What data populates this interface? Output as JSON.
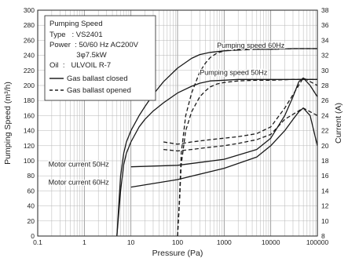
{
  "chart_data": {
    "type": "line",
    "xlabel": "Pressure (Pa)",
    "ylabel_left": "Pumping Speed (m³/h)",
    "ylabel_right": "Current (A)",
    "x_scale": "log",
    "xlim": [
      0.1,
      100000
    ],
    "ylim_left": [
      0,
      300
    ],
    "ylim_right": [
      8,
      38
    ],
    "x_ticks": [
      0.1,
      1,
      10,
      100,
      1000,
      10000,
      100000
    ],
    "x_tick_labels": [
      "0.1",
      "1",
      "10",
      "100",
      "1000",
      "10000",
      "100000"
    ],
    "y_ticks_left": [
      0,
      20,
      40,
      60,
      80,
      100,
      120,
      140,
      160,
      180,
      200,
      220,
      240,
      260,
      280,
      300
    ],
    "y_ticks_right": [
      8,
      10,
      12,
      14,
      16,
      18,
      20,
      22,
      24,
      26,
      28,
      30,
      32,
      34,
      36,
      38
    ],
    "grid": true,
    "legend": {
      "title": "Pumping Speed",
      "lines": [
        "Type   : VS2401",
        "Power  : 50/60 Hz AC200V",
        "             3φ7.5kW",
        "Oil  :   ULVOIL R-7"
      ],
      "entries": [
        {
          "label": "Gas ballast closed",
          "style": "solid"
        },
        {
          "label": "Gas ballast opened",
          "style": "dashed"
        }
      ],
      "position": "top-left"
    },
    "annotations": [
      {
        "text": "Pumping speed 60Hz",
        "x": 700,
        "y": 250
      },
      {
        "text": "Pumping speed 50Hz",
        "x": 300,
        "y": 214
      },
      {
        "text": "Motor current 50Hz",
        "x": 0.17,
        "y": 92
      },
      {
        "text": "Motor current 60Hz",
        "x": 0.17,
        "y": 68
      }
    ],
    "series": [
      {
        "axis": "left",
        "style": "solid",
        "x": [
          5,
          6,
          7,
          8,
          10,
          15,
          20,
          30,
          50,
          100,
          200,
          300,
          500,
          1000,
          2000,
          5000,
          10000,
          30000,
          100000
        ],
        "y": [
          0,
          80,
          110,
          125,
          140,
          160,
          172,
          188,
          205,
          223,
          236,
          241,
          244,
          246,
          247,
          248,
          248,
          249,
          249
        ]
      },
      {
        "axis": "left",
        "style": "solid",
        "x": [
          5,
          6,
          7,
          8,
          10,
          15,
          20,
          30,
          50,
          100,
          200,
          300,
          500,
          1000,
          2000,
          5000,
          10000,
          30000,
          100000
        ],
        "y": [
          0,
          60,
          95,
          110,
          125,
          145,
          155,
          166,
          177,
          190,
          199,
          203,
          206,
          207,
          208,
          208,
          208,
          208,
          208
        ]
      },
      {
        "axis": "left",
        "style": "dashed",
        "x": [
          100,
          110,
          120,
          150,
          200,
          300,
          400,
          500,
          700,
          1000,
          2000,
          5000,
          10000,
          30000,
          100000
        ],
        "y": [
          0,
          50,
          110,
          160,
          190,
          218,
          230,
          237,
          243,
          246,
          248,
          248,
          248,
          249,
          249
        ]
      },
      {
        "axis": "left",
        "style": "dashed",
        "x": [
          100,
          110,
          120,
          150,
          200,
          300,
          400,
          500,
          700,
          1000,
          2000,
          5000,
          10000,
          30000,
          100000
        ],
        "y": [
          0,
          45,
          95,
          140,
          165,
          185,
          193,
          198,
          202,
          204,
          206,
          207,
          207,
          208,
          208
        ]
      },
      {
        "axis": "right",
        "style": "solid",
        "x": [
          10,
          100,
          1000,
          5000,
          10000,
          20000,
          30000,
          40000,
          50000,
          70000,
          100000
        ],
        "y": [
          17.2,
          17.4,
          18.2,
          19.5,
          21,
          24,
          26.5,
          28.5,
          29,
          28,
          26.5
        ]
      },
      {
        "axis": "right",
        "style": "solid",
        "x": [
          10,
          100,
          1000,
          5000,
          10000,
          20000,
          30000,
          40000,
          50000,
          70000,
          100000
        ],
        "y": [
          14.5,
          15.5,
          17,
          18.5,
          20,
          22,
          23.5,
          24.5,
          25,
          24,
          20
        ]
      },
      {
        "axis": "right",
        "style": "dashed",
        "x": [
          50,
          100,
          200,
          500,
          1000,
          2000,
          5000,
          10000,
          20000,
          50000,
          100000
        ],
        "y": [
          20.5,
          20.2,
          20.5,
          20.8,
          21,
          21.2,
          21.6,
          22.5,
          25,
          29,
          28
        ]
      },
      {
        "axis": "right",
        "style": "dashed",
        "x": [
          50,
          100,
          200,
          500,
          1000,
          2000,
          5000,
          10000,
          20000,
          50000,
          100000
        ],
        "y": [
          19.5,
          19.3,
          19.5,
          19.8,
          20,
          20.3,
          20.8,
          21.5,
          23.5,
          25,
          24
        ]
      }
    ]
  }
}
